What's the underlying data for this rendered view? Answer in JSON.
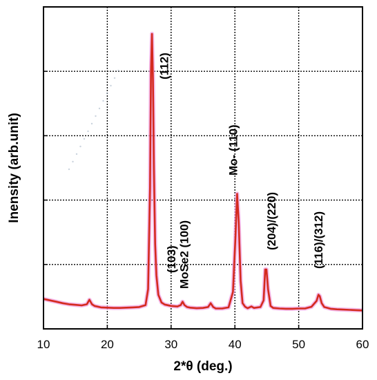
{
  "chart_data": {
    "type": "line",
    "title": "",
    "xlabel": "2*θ (deg.)",
    "ylabel": "Inensity (arb.unit)",
    "xlim": [
      10,
      60
    ],
    "x_ticks": [
      10,
      20,
      30,
      40,
      50,
      60
    ],
    "x_tick_labels": [
      "10",
      "20",
      "30",
      "40",
      "50",
      "60"
    ],
    "y_tick_labels": [],
    "grid": true,
    "legend": "none",
    "colors": {
      "line": "#d42a1e",
      "glow": "#f0a0e0",
      "grid": "#000000"
    },
    "series": [
      {
        "x": [
          10,
          11,
          12,
          13,
          14,
          15,
          16,
          16.8,
          17.2,
          17.6,
          18,
          19,
          20,
          21,
          22,
          23,
          24,
          25,
          26,
          26.4,
          26.7,
          26.85,
          27.0,
          27.15,
          27.3,
          27.5,
          27.7,
          28.0,
          28.5,
          29,
          30,
          31,
          31.5,
          31.8,
          32.1,
          32.5,
          33,
          34,
          35,
          35.8,
          36.2,
          36.6,
          37,
          38,
          39,
          39.7,
          40.1,
          40.35,
          40.6,
          40.9,
          41.2,
          41.6,
          42,
          42.6,
          43,
          44,
          44.5,
          44.75,
          44.95,
          45.2,
          45.6,
          46,
          47,
          48,
          49,
          50,
          51,
          52,
          52.8,
          53.1,
          53.3,
          53.6,
          54,
          55,
          56,
          57,
          58,
          59,
          60
        ],
        "y": [
          0.055,
          0.05,
          0.045,
          0.04,
          0.036,
          0.034,
          0.032,
          0.036,
          0.052,
          0.036,
          0.03,
          0.025,
          0.024,
          0.023,
          0.023,
          0.024,
          0.025,
          0.026,
          0.033,
          0.09,
          0.45,
          0.87,
          1.0,
          0.84,
          0.52,
          0.25,
          0.14,
          0.07,
          0.042,
          0.035,
          0.03,
          0.028,
          0.033,
          0.045,
          0.033,
          0.026,
          0.024,
          0.022,
          0.023,
          0.026,
          0.04,
          0.026,
          0.021,
          0.021,
          0.025,
          0.08,
          0.28,
          0.43,
          0.33,
          0.12,
          0.04,
          0.027,
          0.022,
          0.028,
          0.023,
          0.026,
          0.05,
          0.16,
          0.16,
          0.09,
          0.03,
          0.023,
          0.021,
          0.02,
          0.02,
          0.021,
          0.021,
          0.027,
          0.048,
          0.07,
          0.065,
          0.04,
          0.026,
          0.02,
          0.018,
          0.017,
          0.016,
          0.015,
          0.014
        ]
      }
    ],
    "annotations": [
      {
        "text": "(112)",
        "x": 28.9
      },
      {
        "text": "(103)",
        "x": 30.0
      },
      {
        "text": "MoSe2 (100)",
        "x": 32.0
      },
      {
        "text": "Mo- (110)",
        "x": 39.7
      },
      {
        "text": "(204)/(220)",
        "x": 45.7
      },
      {
        "text": "(116)/(312)",
        "x": 53.1
      }
    ]
  }
}
